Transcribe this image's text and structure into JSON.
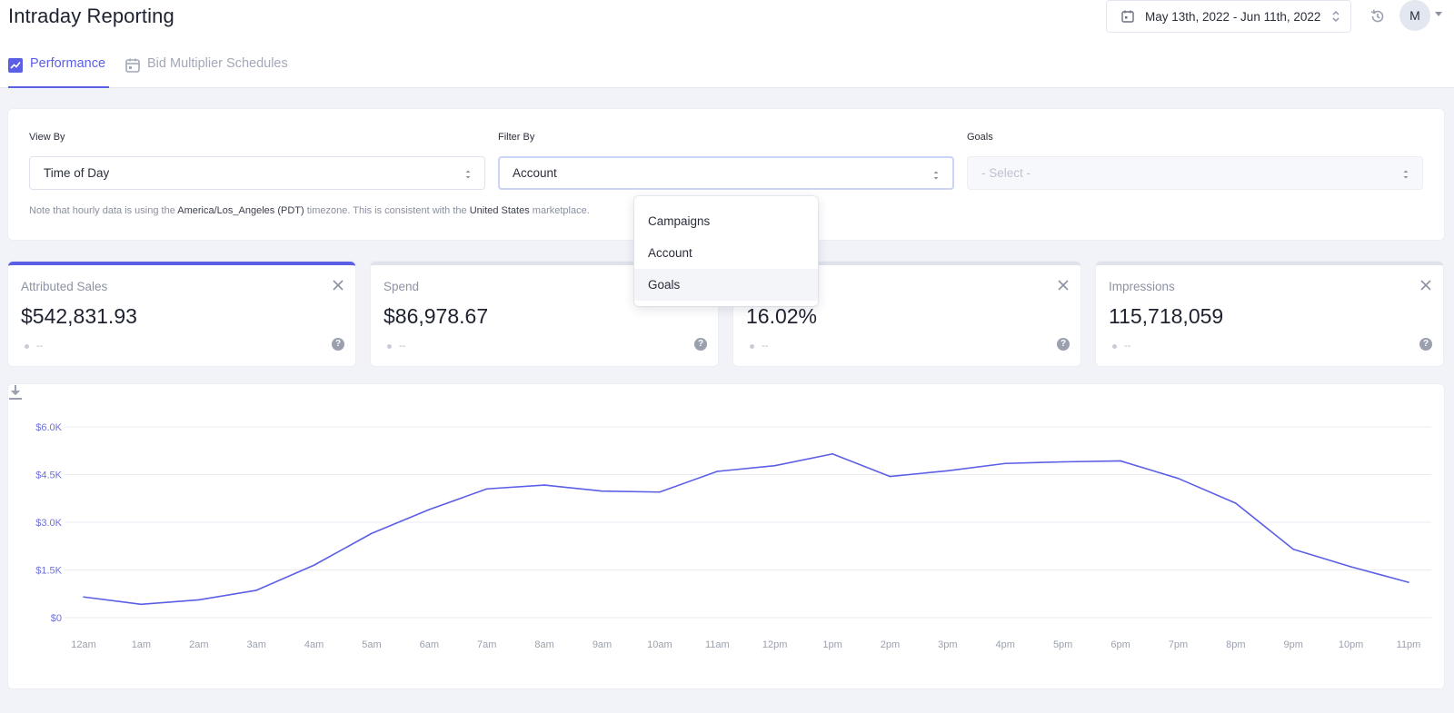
{
  "header": {
    "title": "Intraday Reporting",
    "date_range": "May 13th, 2022 - Jun 11th, 2022",
    "avatar_initial": "M"
  },
  "tabs": [
    {
      "label": "Performance",
      "icon": "trend-chart-icon",
      "active": true
    },
    {
      "label": "Bid Multiplier Schedules",
      "icon": "calendar-icon",
      "active": false
    }
  ],
  "filters": {
    "view_by": {
      "label": "View By",
      "value": "Time of Day"
    },
    "filter_by": {
      "label": "Filter By",
      "value": "Account"
    },
    "goals": {
      "label": "Goals",
      "placeholder": "- Select -"
    },
    "note": {
      "prefix": "Note that hourly data is using the",
      "timezone": "America/Los_Angeles (PDT)",
      "middle": "timezone. This is consistent with the",
      "marketplace": "United States",
      "suffix": "marketplace."
    }
  },
  "dropdown": {
    "options": [
      "Campaigns",
      "Account",
      "Goals"
    ],
    "hovered": "Goals"
  },
  "metrics": [
    {
      "label": "Attributed Sales",
      "value": "$542,831.93",
      "delta": "--",
      "selected": true
    },
    {
      "label": "Spend",
      "value": "$86,978.67",
      "delta": "--",
      "selected": false
    },
    {
      "label": "",
      "value": "16.02%",
      "delta": "--",
      "selected": false
    },
    {
      "label": "Impressions",
      "value": "115,718,059",
      "delta": "--",
      "selected": false
    }
  ],
  "chart_data": {
    "type": "line",
    "title": "",
    "xlabel": "",
    "ylabel": "",
    "categories": [
      "12am",
      "1am",
      "2am",
      "3am",
      "4am",
      "5am",
      "6am",
      "7am",
      "8am",
      "9am",
      "10am",
      "11am",
      "12pm",
      "1pm",
      "2pm",
      "3pm",
      "4pm",
      "5pm",
      "6pm",
      "7pm",
      "8pm",
      "9pm",
      "10pm",
      "11pm"
    ],
    "series": [
      {
        "values": [
          650,
          420,
          560,
          860,
          1650,
          2650,
          3400,
          4050,
          4170,
          3980,
          3950,
          4600,
          4780,
          5150,
          4440,
          4620,
          4850,
          4900,
          4930,
          4380,
          3600,
          2150,
          1600,
          1110
        ]
      }
    ],
    "yticks": [
      0,
      1500,
      3000,
      4500,
      6000
    ],
    "ytick_labels": [
      "$0",
      "$1.5K",
      "$3.0K",
      "$4.5K",
      "$6.0K"
    ],
    "ylim": [
      0,
      6000
    ],
    "grid": true,
    "line_color": "#5b5fe6"
  }
}
